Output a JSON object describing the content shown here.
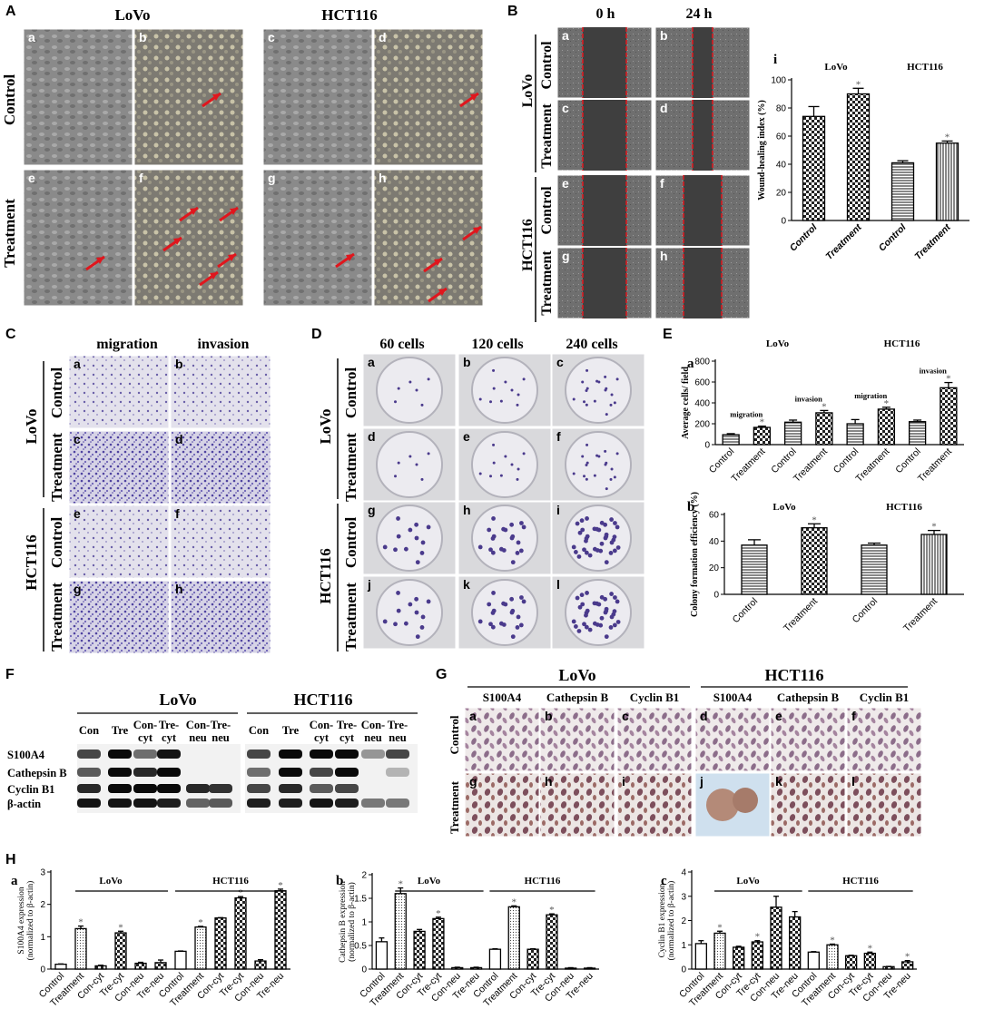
{
  "panel_letters": [
    "A",
    "B",
    "C",
    "D",
    "E",
    "F",
    "G",
    "H"
  ],
  "A": {
    "cols": [
      "LoVo",
      "HCT116"
    ],
    "rows": [
      "Control",
      "Treatment"
    ],
    "sublabels": [
      "a",
      "b",
      "c",
      "d",
      "e",
      "f",
      "g",
      "h"
    ]
  },
  "B": {
    "times": [
      "0 h",
      "24 h"
    ],
    "cells": [
      "LoVo",
      "HCT116"
    ],
    "rows": [
      "Control",
      "Treatment"
    ],
    "sublabels": [
      "a",
      "b",
      "c",
      "d",
      "e",
      "f",
      "g",
      "h"
    ]
  },
  "C": {
    "cols": [
      "migration",
      "invasion"
    ],
    "cells": [
      "LoVo",
      "HCT116"
    ],
    "rows": [
      "Control",
      "Treatment"
    ],
    "sublabels": [
      "a",
      "b",
      "c",
      "d",
      "e",
      "f",
      "g",
      "h"
    ]
  },
  "D": {
    "cols": [
      "60 cells",
      "120 cells",
      "240 cells"
    ],
    "cells": [
      "LoVo",
      "HCT116"
    ],
    "rows": [
      "Control",
      "Treatment"
    ],
    "sublabels": [
      "a",
      "b",
      "c",
      "d",
      "e",
      "f",
      "g",
      "h",
      "i",
      "j",
      "k",
      "l"
    ]
  },
  "F": {
    "groups": [
      "LoVo",
      "HCT116"
    ],
    "lanes": [
      "Con",
      "Tre",
      "Con-cyt",
      "Tre-cyt",
      "Con-neu",
      "Tre-neu"
    ],
    "proteins": [
      "S100A4",
      "Cathepsin B",
      "Cyclin B1",
      "β-actin"
    ]
  },
  "G": {
    "groups": [
      "LoVo",
      "HCT116"
    ],
    "stains": [
      "S100A4",
      "Cathepsin B",
      "Cyclin B1"
    ],
    "rows": [
      "Control",
      "Treatment"
    ],
    "sublabels": [
      "a",
      "b",
      "c",
      "d",
      "e",
      "f",
      "g",
      "h",
      "i",
      "j",
      "k",
      "l"
    ]
  },
  "chart_data": [
    {
      "id": "B-i",
      "letter": "i",
      "type": "bar",
      "ylabel": "Wound-healing index (%)",
      "ylim": [
        0,
        100
      ],
      "yticks": [
        0,
        20,
        40,
        60,
        80,
        100
      ],
      "categories": [
        "Control",
        "Treatment",
        "Control",
        "Treatment"
      ],
      "values": [
        74,
        90,
        41,
        55
      ],
      "errors": [
        7,
        4,
        1.5,
        1.5
      ],
      "stars": [
        false,
        true,
        false,
        true
      ],
      "groups": [
        "LoVo",
        "HCT116"
      ],
      "patterns": [
        "check",
        "check",
        "hlines",
        "vlines"
      ]
    },
    {
      "id": "E-a",
      "letter": "a",
      "type": "bar",
      "ylabel": "Average cells/ field",
      "ylim": [
        0,
        800
      ],
      "yticks": [
        0,
        200,
        400,
        600,
        800
      ],
      "categories": [
        "Control",
        "Treatment",
        "Control",
        "Treatment",
        "Control",
        "Treatment",
        "Control",
        "Treatment"
      ],
      "values": [
        95,
        165,
        215,
        305,
        200,
        340,
        220,
        545
      ],
      "errors": [
        10,
        12,
        20,
        22,
        40,
        18,
        15,
        50
      ],
      "stars": [
        false,
        true,
        false,
        true,
        false,
        true,
        false,
        true
      ],
      "groups": [
        "LoVo",
        "HCT116"
      ],
      "annotations": [
        "migration",
        "invasion",
        "migration",
        "invasion"
      ],
      "patterns": [
        "hlines",
        "check",
        "hlines",
        "check",
        "hlines",
        "check",
        "hlines",
        "check"
      ]
    },
    {
      "id": "E-b",
      "letter": "b",
      "type": "bar",
      "ylabel": "Colony formation efficiency (%)",
      "ylim": [
        0,
        60
      ],
      "yticks": [
        0,
        20,
        40,
        60
      ],
      "categories": [
        "Control",
        "Treatment",
        "Control",
        "Treatment"
      ],
      "values": [
        37,
        50,
        37,
        45
      ],
      "errors": [
        4,
        3,
        1.5,
        3
      ],
      "stars": [
        false,
        true,
        false,
        true
      ],
      "groups": [
        "LoVo",
        "HCT116"
      ],
      "patterns": [
        "hlines",
        "check",
        "hlines",
        "vlines"
      ]
    },
    {
      "id": "H-a",
      "letter": "a",
      "type": "bar",
      "ylabel": "S100A4 expression",
      "ylabel2": "(normalized to β-actin)",
      "ylim": [
        0,
        3
      ],
      "yticks": [
        0,
        1,
        2,
        3
      ],
      "categories": [
        "Control",
        "Treatment",
        "Con-cyt",
        "Tre-cyt",
        "Con-neu",
        "Tre-neu",
        "Control",
        "Treatment",
        "Con-cyt",
        "Tre-cyt",
        "Con-neu",
        "Tre-neu"
      ],
      "values": [
        0.15,
        1.25,
        0.1,
        1.12,
        0.18,
        0.2,
        0.55,
        1.3,
        1.58,
        2.2,
        0.25,
        2.42
      ],
      "errors": [
        0.01,
        0.08,
        0.02,
        0.05,
        0.03,
        0.08,
        0.01,
        0.02,
        0.01,
        0.04,
        0.04,
        0.05
      ],
      "stars": [
        false,
        true,
        false,
        true,
        false,
        false,
        false,
        true,
        false,
        true,
        false,
        true
      ],
      "groups": [
        "LoVo",
        "HCT116"
      ],
      "patterns": [
        "plain",
        "dots",
        "check",
        "check",
        "check",
        "check",
        "plain",
        "dots",
        "check",
        "check",
        "check",
        "check"
      ]
    },
    {
      "id": "H-b",
      "letter": "b",
      "type": "bar",
      "ylabel": "Cathepsin B expression",
      "ylabel2": "(normalized to β-actin)",
      "ylim": [
        0,
        2.0
      ],
      "yticks": [
        0,
        0.5,
        1.0,
        1.5,
        2.0
      ],
      "categories": [
        "Control",
        "Treatment",
        "Con-cyt",
        "Tre-cyt",
        "Con-neu",
        "Tre-neu",
        "Control",
        "Treatment",
        "Con-cyt",
        "Tre-cyt",
        "Con-neu",
        "Tre-neu"
      ],
      "values": [
        0.58,
        1.6,
        0.8,
        1.07,
        0.03,
        0.03,
        0.42,
        1.32,
        0.42,
        1.15,
        0.02,
        0.02
      ],
      "errors": [
        0.08,
        0.12,
        0.04,
        0.03,
        0.01,
        0.01,
        0.01,
        0.02,
        0.01,
        0.02,
        0.01,
        0.01
      ],
      "stars": [
        false,
        true,
        false,
        true,
        false,
        false,
        false,
        true,
        false,
        true,
        false,
        false
      ],
      "groups": [
        "LoVo",
        "HCT116"
      ],
      "patterns": [
        "plain",
        "dots",
        "check",
        "check",
        "check",
        "check",
        "plain",
        "dots",
        "check",
        "check",
        "check",
        "check"
      ]
    },
    {
      "id": "H-c",
      "letter": "c",
      "type": "bar",
      "ylabel": "Cyclin B1 expression",
      "ylabel2": "(normalized to β-actin)",
      "ylim": [
        0,
        4
      ],
      "yticks": [
        0,
        1,
        2,
        3,
        4
      ],
      "categories": [
        "Control",
        "Treatment",
        "Con-cyt",
        "Tre-cyt",
        "Con-neu",
        "Tre-neu",
        "Control",
        "Treatment",
        "Con-cyt",
        "Tre-cyt",
        "Con-neu",
        "Tre-neu"
      ],
      "values": [
        1.05,
        1.48,
        0.9,
        1.12,
        2.55,
        2.15,
        0.7,
        1.0,
        0.55,
        0.65,
        0.1,
        0.3
      ],
      "errors": [
        0.12,
        0.08,
        0.04,
        0.05,
        0.45,
        0.22,
        0.02,
        0.03,
        0.02,
        0.05,
        0.01,
        0.05
      ],
      "stars": [
        false,
        true,
        false,
        true,
        false,
        false,
        false,
        true,
        false,
        true,
        false,
        true
      ],
      "groups": [
        "LoVo",
        "HCT116"
      ],
      "patterns": [
        "plain",
        "dots",
        "check",
        "check",
        "check",
        "check",
        "plain",
        "dots",
        "check",
        "check",
        "check",
        "check"
      ]
    }
  ]
}
